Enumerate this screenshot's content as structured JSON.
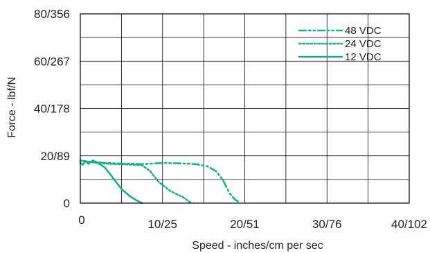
{
  "chart_data": {
    "type": "line",
    "title": "",
    "xlabel": "Speed - inches/cm per sec",
    "ylabel": "Force - lbf/N",
    "xlim": [
      0,
      40
    ],
    "ylim": [
      0,
      80
    ],
    "x_ticks": [
      {
        "value": 0,
        "label": "0"
      },
      {
        "value": 10,
        "label": "10/25"
      },
      {
        "value": 20,
        "label": "20/51"
      },
      {
        "value": 30,
        "label": "30/76"
      },
      {
        "value": 40,
        "label": "40/102"
      }
    ],
    "y_ticks": [
      {
        "value": 0,
        "label": "0"
      },
      {
        "value": 20,
        "label": "20/89"
      },
      {
        "value": 40,
        "label": "40/178"
      },
      {
        "value": 60,
        "label": "60/267"
      },
      {
        "value": 80,
        "label": "80/356"
      }
    ],
    "grid": true,
    "legend_position": "top-right",
    "color": "#1aae8a",
    "series": [
      {
        "name": "48 VDC",
        "dash": "dash-dot-dot",
        "x": [
          0,
          1,
          3,
          5,
          8,
          10,
          12,
          14,
          15.5,
          16.5,
          17.3,
          18.2,
          18.8,
          19.3
        ],
        "y": [
          18,
          17.5,
          17,
          16.7,
          16.5,
          17,
          16.8,
          16.5,
          15.5,
          13.5,
          10,
          4,
          1.5,
          0.5
        ]
      },
      {
        "name": "24 VDC",
        "dash": "dotted",
        "x": [
          0,
          2,
          4,
          6,
          7.5,
          8.5,
          9.5,
          11,
          12.5,
          13.5
        ],
        "y": [
          18,
          17,
          16.5,
          16.3,
          16,
          13.5,
          9,
          5,
          2.5,
          0
        ]
      },
      {
        "name": "12 VDC",
        "dash": "solid",
        "x": [
          0,
          0.3,
          0.6,
          1,
          1.5,
          2,
          3,
          4,
          5,
          6,
          6.8,
          7.5
        ],
        "y": [
          17,
          16.2,
          17.8,
          16.6,
          18,
          17.3,
          15,
          10.5,
          6,
          3,
          1.2,
          0
        ]
      }
    ]
  }
}
